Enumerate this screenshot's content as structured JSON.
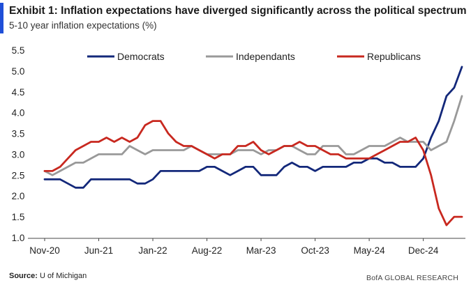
{
  "header": {
    "title": "Exhibit 1: Inflation expectations have diverged significantly across the political spectrum",
    "subtitle": "5-10 year inflation expectations (%)"
  },
  "footer": {
    "source_label": "Source:",
    "source_text": "U of Michigan",
    "brand": "BofA GLOBAL RESEARCH"
  },
  "chart_data": {
    "type": "line",
    "title": "Exhibit 1: Inflation expectations have diverged significantly across the political spectrum",
    "subtitle": "5-10 year inflation expectations (%)",
    "xlabel": "",
    "ylabel": "",
    "ylim": [
      1.0,
      5.5
    ],
    "yticks": [
      1.0,
      1.5,
      2.0,
      2.5,
      3.0,
      3.5,
      4.0,
      4.5,
      5.0,
      5.5
    ],
    "ytick_labels": [
      "1.0",
      "1.5",
      "2.0",
      "2.5",
      "3.0",
      "3.5",
      "4.0",
      "4.5",
      "5.0",
      "5.5"
    ],
    "xticks": [
      {
        "label": "Nov-20",
        "index": 0
      },
      {
        "label": "Jun-21",
        "index": 7
      },
      {
        "label": "Jan-22",
        "index": 14
      },
      {
        "label": "Aug-22",
        "index": 21
      },
      {
        "label": "Mar-23",
        "index": 28
      },
      {
        "label": "Oct-23",
        "index": 35
      },
      {
        "label": "May-24",
        "index": 42
      },
      {
        "label": "Dec-24",
        "index": 49
      }
    ],
    "grid": false,
    "legend_position": "top",
    "series": [
      {
        "name": "Democrats",
        "color": "#13287a",
        "values": [
          2.4,
          2.4,
          2.4,
          2.3,
          2.2,
          2.2,
          2.4,
          2.4,
          2.4,
          2.4,
          2.4,
          2.4,
          2.3,
          2.3,
          2.4,
          2.6,
          2.6,
          2.6,
          2.6,
          2.6,
          2.6,
          2.7,
          2.7,
          2.6,
          2.5,
          2.6,
          2.7,
          2.7,
          2.5,
          2.5,
          2.5,
          2.7,
          2.8,
          2.7,
          2.7,
          2.6,
          2.7,
          2.7,
          2.7,
          2.7,
          2.8,
          2.8,
          2.9,
          2.9,
          2.8,
          2.8,
          2.7,
          2.7,
          2.7,
          2.9,
          3.4,
          3.8,
          4.4,
          4.6,
          5.1
        ]
      },
      {
        "name": "Independants",
        "color": "#999999",
        "values": [
          2.6,
          2.5,
          2.6,
          2.7,
          2.8,
          2.8,
          2.9,
          3.0,
          3.0,
          3.0,
          3.0,
          3.2,
          3.1,
          3.0,
          3.1,
          3.1,
          3.1,
          3.1,
          3.1,
          3.2,
          3.1,
          3.0,
          3.0,
          3.0,
          3.0,
          3.1,
          3.1,
          3.1,
          3.0,
          3.1,
          3.1,
          3.2,
          3.2,
          3.1,
          3.0,
          3.0,
          3.2,
          3.2,
          3.2,
          3.0,
          3.0,
          3.1,
          3.2,
          3.2,
          3.2,
          3.3,
          3.4,
          3.3,
          3.3,
          3.3,
          3.1,
          3.2,
          3.3,
          3.8,
          4.4
        ]
      },
      {
        "name": "Republicans",
        "color": "#c8281f",
        "values": [
          2.6,
          2.6,
          2.7,
          2.9,
          3.1,
          3.2,
          3.3,
          3.3,
          3.4,
          3.3,
          3.4,
          3.3,
          3.4,
          3.7,
          3.8,
          3.8,
          3.5,
          3.3,
          3.2,
          3.2,
          3.1,
          3.0,
          2.9,
          3.0,
          3.0,
          3.2,
          3.2,
          3.3,
          3.1,
          3.0,
          3.1,
          3.2,
          3.2,
          3.3,
          3.2,
          3.2,
          3.1,
          3.0,
          3.0,
          2.9,
          2.9,
          2.9,
          2.9,
          3.0,
          3.1,
          3.2,
          3.3,
          3.3,
          3.4,
          3.1,
          2.5,
          1.7,
          1.3,
          1.5,
          1.5
        ]
      }
    ]
  }
}
